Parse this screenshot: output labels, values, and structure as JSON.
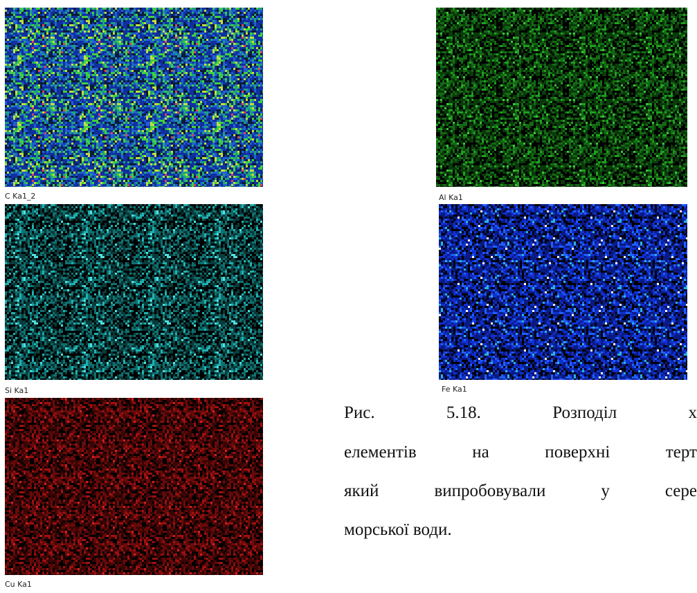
{
  "maps": [
    {
      "label": "C Ka1_2"
    },
    {
      "label": "Al Ka1"
    },
    {
      "label": "Si Ka1"
    },
    {
      "label": "Fe Ka1"
    },
    {
      "label": "Cu Ka1"
    }
  ],
  "caption": {
    "lines": [
      "Рис. 5.18. Розподіл х",
      "елементів на поверхні терт",
      "який випробовували у сере",
      "морської води."
    ]
  }
}
